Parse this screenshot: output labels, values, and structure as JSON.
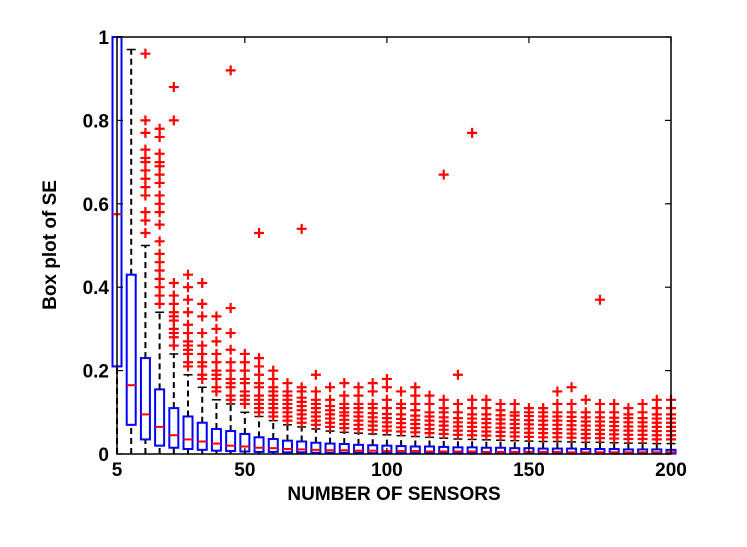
{
  "chart_data": {
    "type": "box",
    "title": "",
    "xlabel": "NUMBER OF SENSORS",
    "ylabel": "Box plot of SE",
    "xlim": [
      5,
      200
    ],
    "ylim": [
      0,
      1
    ],
    "x_ticks": [
      5,
      50,
      100,
      150,
      200
    ],
    "y_ticks": [
      0,
      0.2,
      0.4,
      0.6,
      0.8,
      1
    ],
    "x_tick_labels": [
      "5",
      "50",
      "100",
      "150",
      "200"
    ],
    "y_tick_labels": [
      "0",
      "0.2",
      "0.4",
      "0.6",
      "0.8",
      "1"
    ],
    "grid": false,
    "box_color": "#0000ff",
    "median_color": "#ff0000",
    "whisker_color": "#000000",
    "outlier_color": "#ff0000",
    "boxes": [
      {
        "x": 5,
        "q1": 0.21,
        "median": 0.575,
        "q3": 1.0,
        "whisker_low": 0.0,
        "whisker_high": 1.0,
        "outliers": []
      },
      {
        "x": 10,
        "q1": 0.07,
        "median": 0.165,
        "q3": 0.43,
        "whisker_low": 0.0,
        "whisker_high": 0.97,
        "outliers": []
      },
      {
        "x": 15,
        "q1": 0.035,
        "median": 0.095,
        "q3": 0.23,
        "whisker_low": 0.0,
        "whisker_high": 0.5,
        "outliers": [
          0.53,
          0.56,
          0.58,
          0.62,
          0.64,
          0.66,
          0.68,
          0.7,
          0.71,
          0.73,
          0.77,
          0.8,
          0.96
        ]
      },
      {
        "x": 20,
        "q1": 0.02,
        "median": 0.065,
        "q3": 0.155,
        "whisker_low": 0.0,
        "whisker_high": 0.34,
        "outliers": [
          0.36,
          0.38,
          0.4,
          0.42,
          0.44,
          0.46,
          0.48,
          0.51,
          0.55,
          0.58,
          0.6,
          0.62,
          0.65,
          0.67,
          0.69,
          0.7,
          0.72,
          0.76,
          0.78
        ]
      },
      {
        "x": 25,
        "q1": 0.015,
        "median": 0.045,
        "q3": 0.11,
        "whisker_low": 0.0,
        "whisker_high": 0.24,
        "outliers": [
          0.26,
          0.28,
          0.29,
          0.3,
          0.32,
          0.33,
          0.34,
          0.36,
          0.38,
          0.41,
          0.8,
          0.88
        ]
      },
      {
        "x": 30,
        "q1": 0.012,
        "median": 0.035,
        "q3": 0.09,
        "whisker_low": 0.0,
        "whisker_high": 0.19,
        "outliers": [
          0.21,
          0.22,
          0.24,
          0.25,
          0.26,
          0.27,
          0.29,
          0.31,
          0.34,
          0.37,
          0.4,
          0.43
        ]
      },
      {
        "x": 35,
        "q1": 0.01,
        "median": 0.03,
        "q3": 0.075,
        "whisker_low": 0.0,
        "whisker_high": 0.16,
        "outliers": [
          0.18,
          0.19,
          0.21,
          0.22,
          0.24,
          0.26,
          0.29,
          0.33,
          0.36,
          0.41
        ]
      },
      {
        "x": 40,
        "q1": 0.008,
        "median": 0.025,
        "q3": 0.06,
        "whisker_low": 0.0,
        "whisker_high": 0.13,
        "outliers": [
          0.15,
          0.16,
          0.18,
          0.19,
          0.2,
          0.22,
          0.24,
          0.27,
          0.3,
          0.33
        ]
      },
      {
        "x": 45,
        "q1": 0.007,
        "median": 0.02,
        "q3": 0.055,
        "whisker_low": 0.0,
        "whisker_high": 0.12,
        "outliers": [
          0.13,
          0.14,
          0.16,
          0.17,
          0.18,
          0.2,
          0.22,
          0.25,
          0.29,
          0.35,
          0.92
        ]
      },
      {
        "x": 50,
        "q1": 0.006,
        "median": 0.018,
        "q3": 0.048,
        "whisker_low": 0.0,
        "whisker_high": 0.1,
        "outliers": [
          0.12,
          0.13,
          0.14,
          0.15,
          0.17,
          0.18,
          0.2,
          0.22,
          0.24
        ]
      },
      {
        "x": 55,
        "q1": 0.005,
        "median": 0.015,
        "q3": 0.04,
        "whisker_low": 0.0,
        "whisker_high": 0.09,
        "outliers": [
          0.1,
          0.11,
          0.12,
          0.13,
          0.14,
          0.16,
          0.17,
          0.19,
          0.21,
          0.23,
          0.53
        ]
      },
      {
        "x": 60,
        "q1": 0.005,
        "median": 0.014,
        "q3": 0.036,
        "whisker_low": 0.0,
        "whisker_high": 0.08,
        "outliers": [
          0.09,
          0.1,
          0.11,
          0.12,
          0.13,
          0.14,
          0.15,
          0.16,
          0.18,
          0.2
        ]
      },
      {
        "x": 65,
        "q1": 0.004,
        "median": 0.012,
        "q3": 0.032,
        "whisker_low": 0.0,
        "whisker_high": 0.07,
        "outliers": [
          0.08,
          0.09,
          0.1,
          0.11,
          0.12,
          0.13,
          0.14,
          0.15,
          0.17
        ]
      },
      {
        "x": 70,
        "q1": 0.004,
        "median": 0.011,
        "q3": 0.03,
        "whisker_low": 0.0,
        "whisker_high": 0.065,
        "outliers": [
          0.075,
          0.085,
          0.095,
          0.105,
          0.115,
          0.125,
          0.135,
          0.15,
          0.16,
          0.54
        ]
      },
      {
        "x": 75,
        "q1": 0.003,
        "median": 0.01,
        "q3": 0.027,
        "whisker_low": 0.0,
        "whisker_high": 0.06,
        "outliers": [
          0.07,
          0.08,
          0.09,
          0.1,
          0.11,
          0.12,
          0.13,
          0.15,
          0.19
        ]
      },
      {
        "x": 80,
        "q1": 0.003,
        "median": 0.009,
        "q3": 0.025,
        "whisker_low": 0.0,
        "whisker_high": 0.055,
        "outliers": [
          0.065,
          0.075,
          0.085,
          0.095,
          0.105,
          0.115,
          0.13,
          0.16
        ]
      },
      {
        "x": 85,
        "q1": 0.003,
        "median": 0.009,
        "q3": 0.024,
        "whisker_low": 0.0,
        "whisker_high": 0.052,
        "outliers": [
          0.062,
          0.072,
          0.082,
          0.092,
          0.1,
          0.11,
          0.12,
          0.14,
          0.17
        ]
      },
      {
        "x": 90,
        "q1": 0.003,
        "median": 0.008,
        "q3": 0.022,
        "whisker_low": 0.0,
        "whisker_high": 0.05,
        "outliers": [
          0.06,
          0.07,
          0.08,
          0.09,
          0.1,
          0.11,
          0.12,
          0.14,
          0.16
        ]
      },
      {
        "x": 95,
        "q1": 0.002,
        "median": 0.008,
        "q3": 0.021,
        "whisker_low": 0.0,
        "whisker_high": 0.048,
        "outliers": [
          0.058,
          0.068,
          0.078,
          0.088,
          0.098,
          0.11,
          0.12,
          0.15,
          0.17
        ]
      },
      {
        "x": 100,
        "q1": 0.002,
        "median": 0.007,
        "q3": 0.02,
        "whisker_low": 0.0,
        "whisker_high": 0.046,
        "outliers": [
          0.056,
          0.066,
          0.076,
          0.086,
          0.096,
          0.11,
          0.13,
          0.16,
          0.18
        ]
      },
      {
        "x": 105,
        "q1": 0.002,
        "median": 0.007,
        "q3": 0.019,
        "whisker_low": 0.0,
        "whisker_high": 0.044,
        "outliers": [
          0.054,
          0.064,
          0.074,
          0.084,
          0.095,
          0.11,
          0.12,
          0.15
        ]
      },
      {
        "x": 110,
        "q1": 0.002,
        "median": 0.007,
        "q3": 0.018,
        "whisker_low": 0.0,
        "whisker_high": 0.042,
        "outliers": [
          0.052,
          0.062,
          0.072,
          0.082,
          0.092,
          0.105,
          0.12,
          0.14,
          0.16
        ]
      },
      {
        "x": 115,
        "q1": 0.002,
        "median": 0.006,
        "q3": 0.018,
        "whisker_low": 0.0,
        "whisker_high": 0.04,
        "outliers": [
          0.05,
          0.06,
          0.07,
          0.08,
          0.09,
          0.1,
          0.12,
          0.14
        ]
      },
      {
        "x": 120,
        "q1": 0.002,
        "median": 0.006,
        "q3": 0.017,
        "whisker_low": 0.0,
        "whisker_high": 0.038,
        "outliers": [
          0.048,
          0.058,
          0.068,
          0.078,
          0.088,
          0.1,
          0.11,
          0.13,
          0.67
        ]
      },
      {
        "x": 125,
        "q1": 0.002,
        "median": 0.006,
        "q3": 0.016,
        "whisker_low": 0.0,
        "whisker_high": 0.036,
        "outliers": [
          0.046,
          0.056,
          0.066,
          0.076,
          0.086,
          0.1,
          0.12,
          0.19
        ]
      },
      {
        "x": 130,
        "q1": 0.002,
        "median": 0.006,
        "q3": 0.016,
        "whisker_low": 0.0,
        "whisker_high": 0.035,
        "outliers": [
          0.045,
          0.055,
          0.065,
          0.075,
          0.085,
          0.095,
          0.11,
          0.13,
          0.77
        ]
      },
      {
        "x": 135,
        "q1": 0.002,
        "median": 0.005,
        "q3": 0.015,
        "whisker_low": 0.0,
        "whisker_high": 0.034,
        "outliers": [
          0.044,
          0.054,
          0.064,
          0.074,
          0.084,
          0.095,
          0.11,
          0.13
        ]
      },
      {
        "x": 140,
        "q1": 0.002,
        "median": 0.005,
        "q3": 0.015,
        "whisker_low": 0.0,
        "whisker_high": 0.033,
        "outliers": [
          0.043,
          0.053,
          0.063,
          0.073,
          0.083,
          0.093,
          0.105,
          0.12
        ]
      },
      {
        "x": 145,
        "q1": 0.002,
        "median": 0.005,
        "q3": 0.014,
        "whisker_low": 0.0,
        "whisker_high": 0.032,
        "outliers": [
          0.042,
          0.052,
          0.062,
          0.072,
          0.082,
          0.092,
          0.1,
          0.12
        ]
      },
      {
        "x": 150,
        "q1": 0.002,
        "median": 0.005,
        "q3": 0.014,
        "whisker_low": 0.0,
        "whisker_high": 0.031,
        "outliers": [
          0.041,
          0.051,
          0.061,
          0.071,
          0.081,
          0.091,
          0.1,
          0.11
        ]
      },
      {
        "x": 155,
        "q1": 0.001,
        "median": 0.005,
        "q3": 0.013,
        "whisker_low": 0.0,
        "whisker_high": 0.03,
        "outliers": [
          0.04,
          0.05,
          0.06,
          0.07,
          0.08,
          0.09,
          0.1,
          0.11
        ]
      },
      {
        "x": 160,
        "q1": 0.001,
        "median": 0.005,
        "q3": 0.013,
        "whisker_low": 0.0,
        "whisker_high": 0.03,
        "outliers": [
          0.04,
          0.05,
          0.06,
          0.07,
          0.08,
          0.09,
          0.1,
          0.12,
          0.15
        ]
      },
      {
        "x": 165,
        "q1": 0.001,
        "median": 0.004,
        "q3": 0.013,
        "whisker_low": 0.0,
        "whisker_high": 0.029,
        "outliers": [
          0.039,
          0.049,
          0.059,
          0.069,
          0.079,
          0.089,
          0.1,
          0.12,
          0.16
        ]
      },
      {
        "x": 170,
        "q1": 0.001,
        "median": 0.004,
        "q3": 0.012,
        "whisker_low": 0.0,
        "whisker_high": 0.028,
        "outliers": [
          0.038,
          0.048,
          0.058,
          0.068,
          0.078,
          0.088,
          0.1,
          0.13
        ]
      },
      {
        "x": 175,
        "q1": 0.001,
        "median": 0.004,
        "q3": 0.012,
        "whisker_low": 0.0,
        "whisker_high": 0.028,
        "outliers": [
          0.038,
          0.048,
          0.058,
          0.068,
          0.078,
          0.088,
          0.1,
          0.12,
          0.37
        ]
      },
      {
        "x": 180,
        "q1": 0.001,
        "median": 0.004,
        "q3": 0.012,
        "whisker_low": 0.0,
        "whisker_high": 0.027,
        "outliers": [
          0.037,
          0.047,
          0.057,
          0.067,
          0.077,
          0.087,
          0.1,
          0.12
        ]
      },
      {
        "x": 185,
        "q1": 0.001,
        "median": 0.004,
        "q3": 0.011,
        "whisker_low": 0.0,
        "whisker_high": 0.026,
        "outliers": [
          0.036,
          0.046,
          0.056,
          0.066,
          0.076,
          0.086,
          0.095,
          0.11
        ]
      },
      {
        "x": 190,
        "q1": 0.001,
        "median": 0.004,
        "q3": 0.011,
        "whisker_low": 0.0,
        "whisker_high": 0.026,
        "outliers": [
          0.036,
          0.046,
          0.056,
          0.066,
          0.076,
          0.086,
          0.1,
          0.12
        ]
      },
      {
        "x": 195,
        "q1": 0.001,
        "median": 0.004,
        "q3": 0.011,
        "whisker_low": 0.0,
        "whisker_high": 0.025,
        "outliers": [
          0.035,
          0.045,
          0.055,
          0.065,
          0.075,
          0.085,
          0.095,
          0.11,
          0.13
        ]
      },
      {
        "x": 200,
        "q1": 0.001,
        "median": 0.004,
        "q3": 0.01,
        "whisker_low": 0.0,
        "whisker_high": 0.025,
        "outliers": [
          0.035,
          0.045,
          0.055,
          0.065,
          0.075,
          0.085,
          0.095,
          0.11,
          0.13
        ]
      }
    ]
  }
}
